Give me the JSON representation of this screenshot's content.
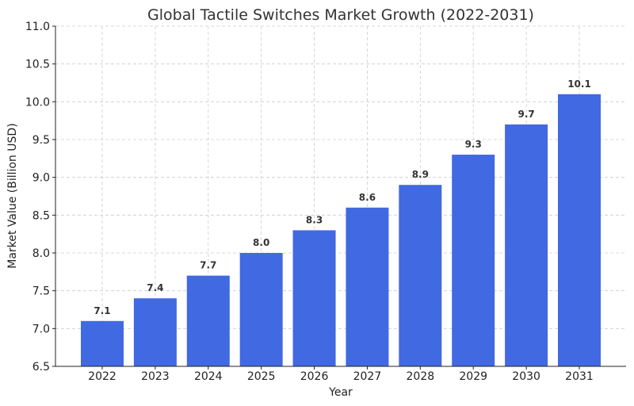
{
  "chart_data": {
    "type": "bar",
    "title": "Global Tactile Switches Market Growth (2022-2031)",
    "xlabel": "Year",
    "ylabel": "Market Value (Billion USD)",
    "categories": [
      "2022",
      "2023",
      "2024",
      "2025",
      "2026",
      "2027",
      "2028",
      "2029",
      "2030",
      "2031"
    ],
    "values": [
      7.1,
      7.4,
      7.7,
      8.0,
      8.3,
      8.6,
      8.9,
      9.3,
      9.7,
      10.1
    ],
    "data_labels": [
      "7.1",
      "7.4",
      "7.7",
      "8.0",
      "8.3",
      "8.6",
      "8.9",
      "9.3",
      "9.7",
      "10.1"
    ],
    "ylim": [
      6.5,
      11.0
    ],
    "yticks": [
      "6.5",
      "7.0",
      "7.5",
      "8.0",
      "8.5",
      "9.0",
      "9.5",
      "10.0",
      "10.5",
      "11.0"
    ],
    "grid": true,
    "bar_color": "#4169E1"
  }
}
